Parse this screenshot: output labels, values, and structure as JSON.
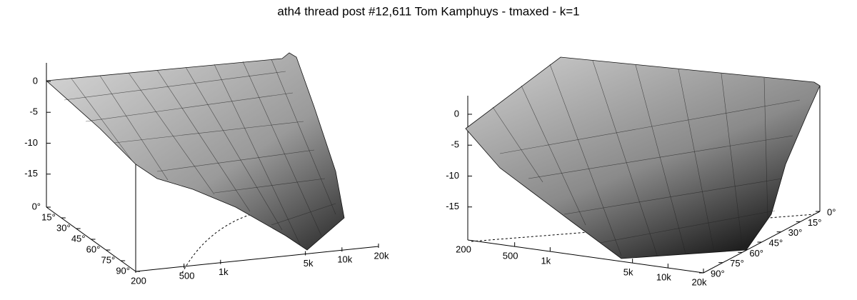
{
  "title": "ath4 thread post #12,611 Tom Kamphuys - tmaxed - k=1",
  "chart_data": [
    {
      "type": "surface",
      "zlim": [
        -20,
        3
      ],
      "zticks": [
        0,
        -5,
        -10,
        -15
      ],
      "xscale": "log",
      "xlim": [
        200,
        20000
      ],
      "xticks": [
        {
          "value": 200,
          "label": "200"
        },
        {
          "value": 500,
          "label": "500"
        },
        {
          "value": 1000,
          "label": "1k"
        },
        {
          "value": 5000,
          "label": "5k"
        },
        {
          "value": 10000,
          "label": "10k"
        },
        {
          "value": 20000,
          "label": "20k"
        }
      ],
      "ylim": [
        0,
        90
      ],
      "yticks": [
        {
          "value": 0,
          "label": "0°"
        },
        {
          "value": 15,
          "label": "15°"
        },
        {
          "value": 30,
          "label": "30°"
        },
        {
          "value": 45,
          "label": "45°"
        },
        {
          "value": 60,
          "label": "60°"
        },
        {
          "value": 75,
          "label": "75°"
        },
        {
          "value": 90,
          "label": "90°"
        }
      ]
    },
    {
      "type": "surface",
      "zlim": [
        -20,
        3
      ],
      "zticks": [
        0,
        -5,
        -10,
        -15
      ],
      "xscale": "log",
      "xlim": [
        200,
        20000
      ],
      "xticks": [
        {
          "value": 200,
          "label": "200"
        },
        {
          "value": 500,
          "label": "500"
        },
        {
          "value": 1000,
          "label": "1k"
        },
        {
          "value": 5000,
          "label": "5k"
        },
        {
          "value": 10000,
          "label": "10k"
        },
        {
          "value": 20000,
          "label": "20k"
        }
      ],
      "ylim": [
        0,
        90
      ],
      "yticks": [
        {
          "value": 0,
          "label": "0°"
        },
        {
          "value": 15,
          "label": "15°"
        },
        {
          "value": 30,
          "label": "30°"
        },
        {
          "value": 45,
          "label": "45°"
        },
        {
          "value": 60,
          "label": "60°"
        },
        {
          "value": 75,
          "label": "75°"
        },
        {
          "value": 90,
          "label": "90°"
        }
      ]
    }
  ]
}
